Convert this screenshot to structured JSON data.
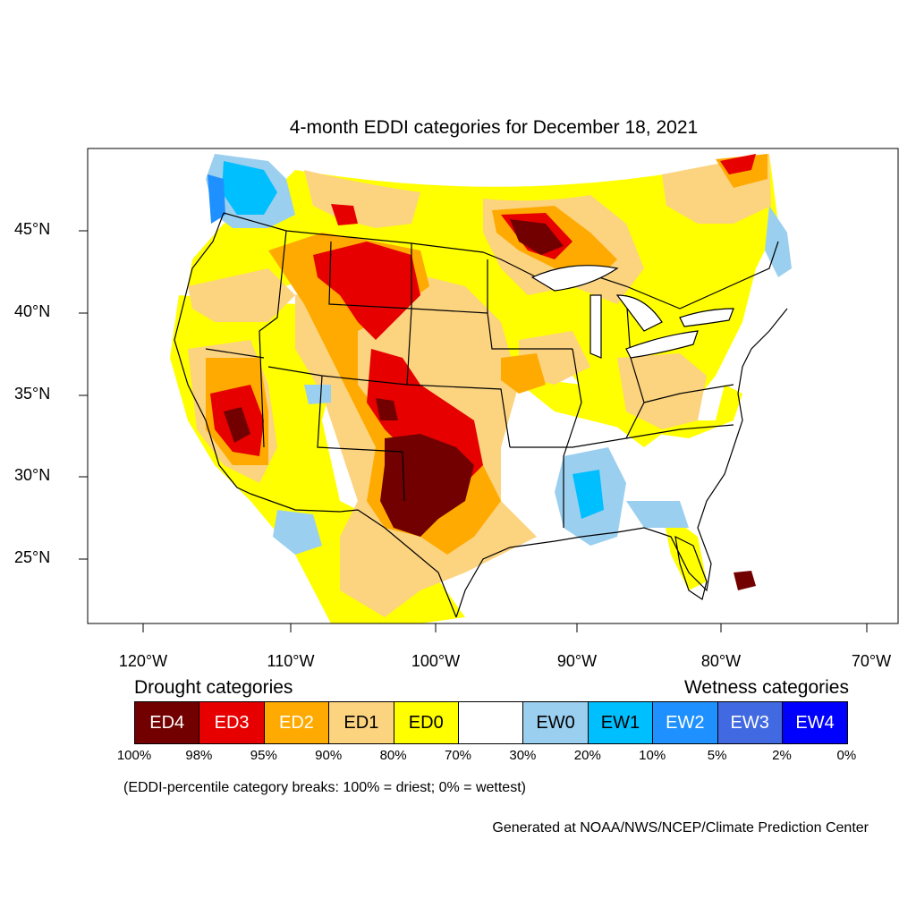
{
  "title": "4-month EDDI categories for December 18, 2021",
  "lat_labels": [
    "45°N",
    "40°N",
    "35°N",
    "30°N",
    "25°N"
  ],
  "lon_labels": [
    "120°W",
    "110°W",
    "100°W",
    "90°W",
    "80°W",
    "70°W"
  ],
  "legend": {
    "drought_heading": "Drought categories",
    "wetness_heading": "Wetness categories",
    "categories": [
      {
        "label": "ED4",
        "color": "#730000",
        "text_color": "#ffffff"
      },
      {
        "label": "ED3",
        "color": "#e60000",
        "text_color": "#ffffff"
      },
      {
        "label": "ED2",
        "color": "#ffaa00",
        "text_color": "#ffffff"
      },
      {
        "label": "ED1",
        "color": "#fcd37f",
        "text_color": "#000000"
      },
      {
        "label": "ED0",
        "color": "#ffff00",
        "text_color": "#000000"
      },
      {
        "label": "",
        "color": "#ffffff",
        "text_color": "#000000"
      },
      {
        "label": "EW0",
        "color": "#9bcfef",
        "text_color": "#000000"
      },
      {
        "label": "EW1",
        "color": "#00bfff",
        "text_color": "#000000"
      },
      {
        "label": "EW2",
        "color": "#1e90ff",
        "text_color": "#ffffff"
      },
      {
        "label": "EW3",
        "color": "#4169e1",
        "text_color": "#ffffff"
      },
      {
        "label": "EW4",
        "color": "#0000ff",
        "text_color": "#ffffff"
      }
    ],
    "percentiles": [
      "100%",
      "98%",
      "95%",
      "90%",
      "80%",
      "70%",
      "30%",
      "20%",
      "10%",
      "5%",
      "2%",
      "0%"
    ]
  },
  "breaks_note": "(EDDI-percentile category breaks: 100% = driest; 0% = wettest)",
  "credit": "Generated at NOAA/NWS/NCEP/Climate Prediction Center"
}
